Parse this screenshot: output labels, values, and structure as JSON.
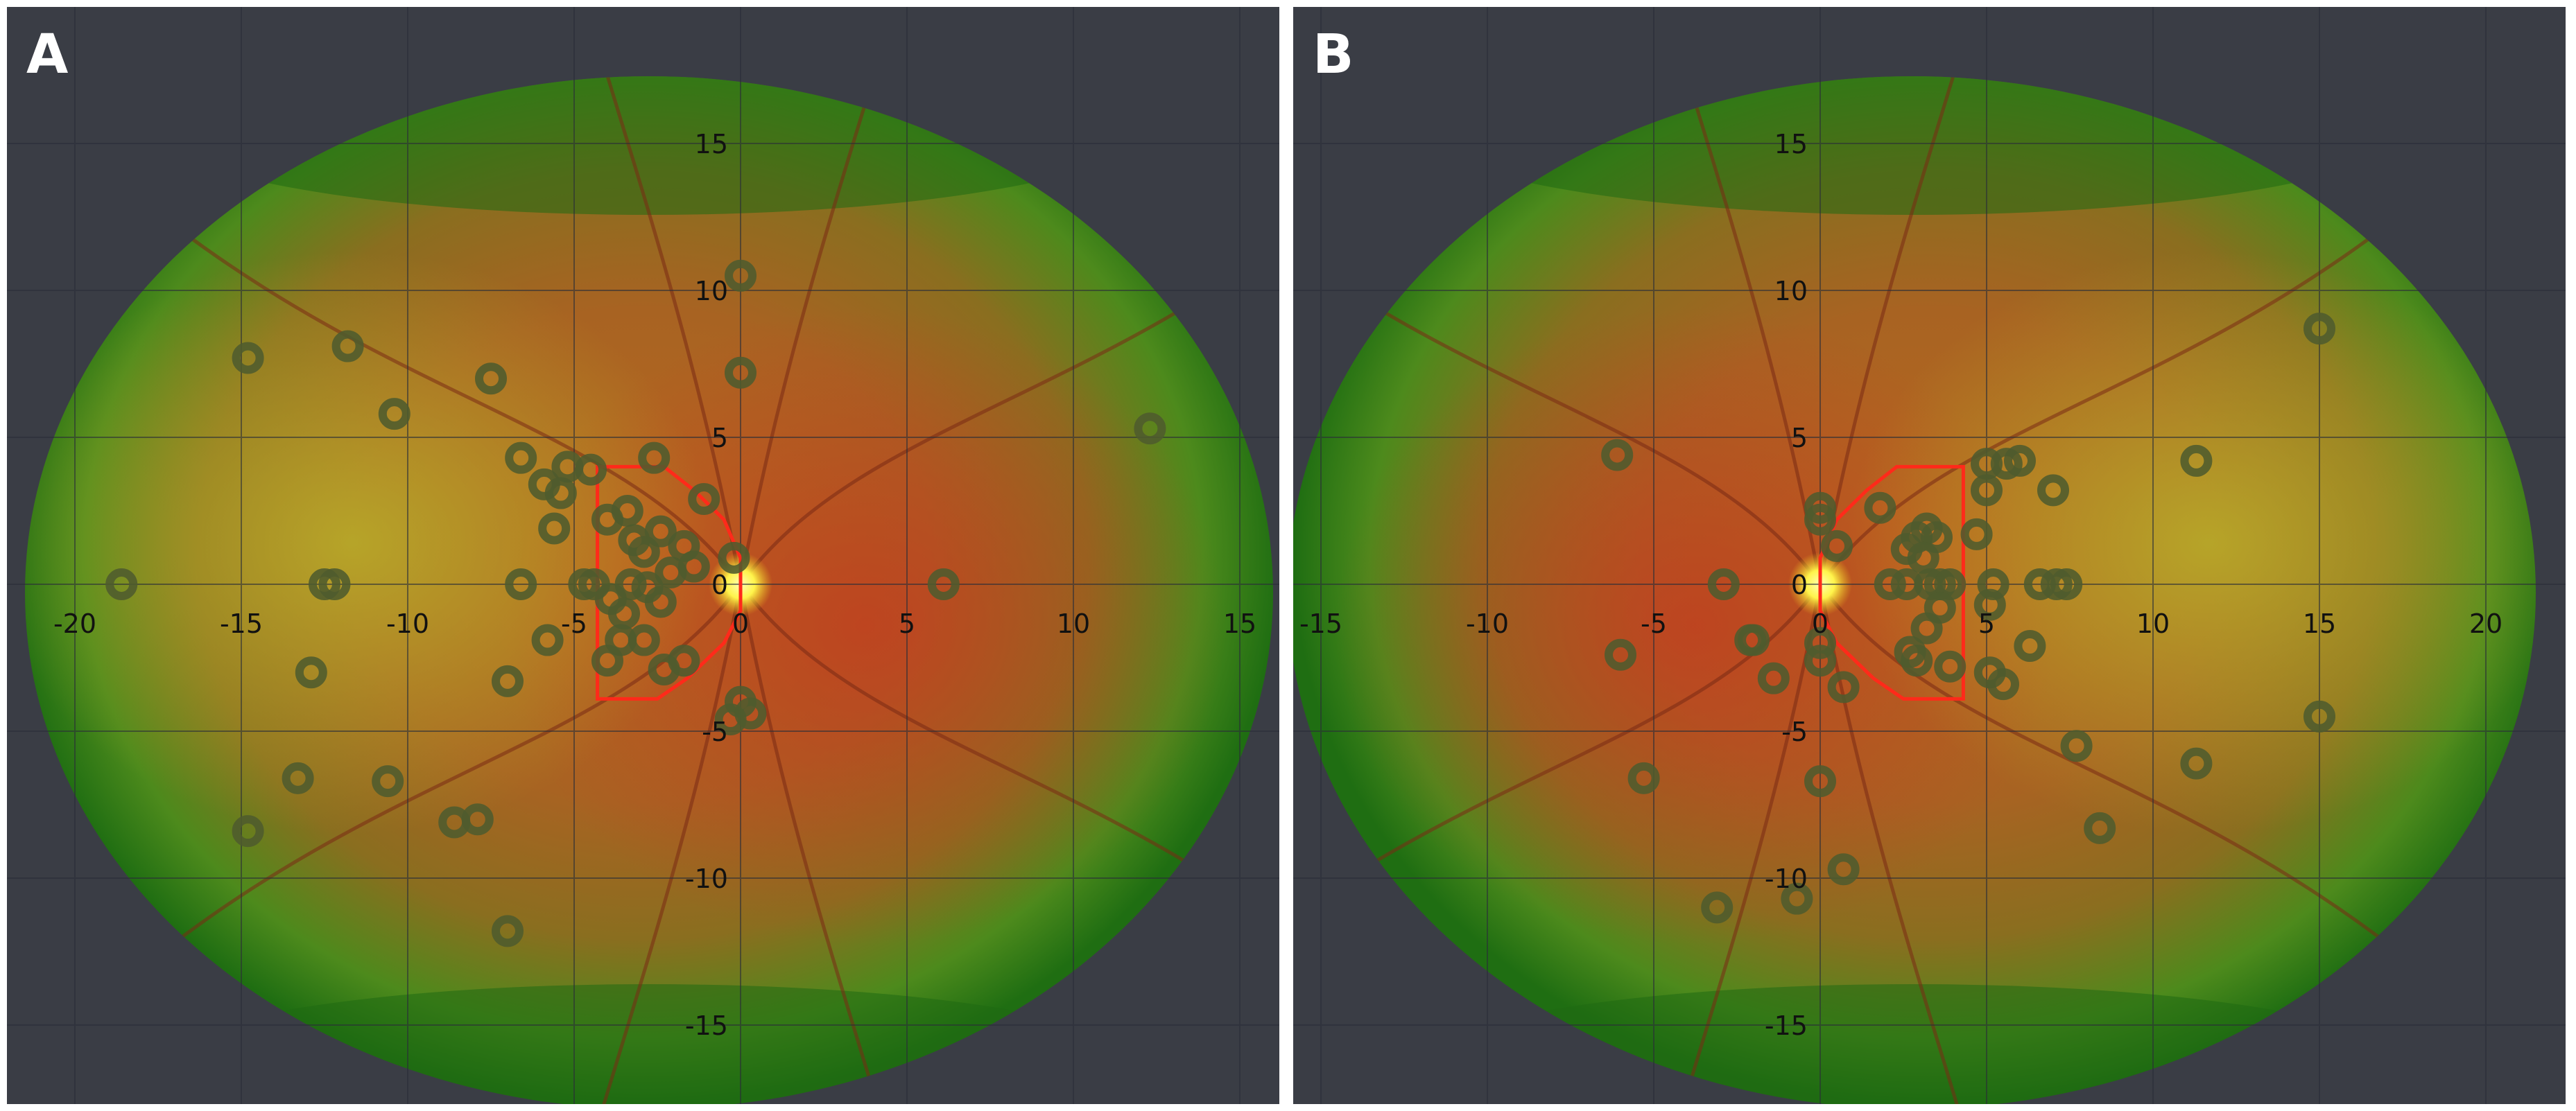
{
  "figure": {
    "panels": [
      {
        "id": "A",
        "label": "A",
        "x_ticks": [
          -20,
          -15,
          -10,
          -5,
          0,
          5,
          10,
          15
        ],
        "y_ticks": [
          15,
          10,
          5,
          0,
          -5,
          -10,
          -15
        ],
        "disc_x": 0,
        "field_x_range": [
          -21.5,
          16
        ],
        "red_outline": [
          [
            -4.3,
            4
          ],
          [
            -2.3,
            4
          ],
          [
            -1.4,
            3.2
          ],
          [
            -0.5,
            2.2
          ],
          [
            0,
            0.9
          ],
          [
            0,
            -0.9
          ],
          [
            -0.5,
            -2
          ],
          [
            -1.6,
            -3.2
          ],
          [
            -2.5,
            -3.9
          ],
          [
            -4.3,
            -3.9
          ]
        ],
        "marks": [
          [
            0,
            10.5
          ],
          [
            0,
            7.2
          ],
          [
            -14.8,
            7.7
          ],
          [
            -11.8,
            8.1
          ],
          [
            -10.4,
            5.8
          ],
          [
            -7.5,
            7
          ],
          [
            12.3,
            5.3
          ],
          [
            -6.6,
            4.3
          ],
          [
            -5.2,
            4
          ],
          [
            -5.9,
            3.4
          ],
          [
            -5.4,
            3.1
          ],
          [
            -4.5,
            3.9
          ],
          [
            -2.6,
            4.3
          ],
          [
            -1.1,
            2.9
          ],
          [
            -5.6,
            1.9
          ],
          [
            -4,
            2.2
          ],
          [
            -3.4,
            2.5
          ],
          [
            -3.2,
            1.5
          ],
          [
            -2.4,
            1.8
          ],
          [
            -1.7,
            1.3
          ],
          [
            -2.9,
            1.1
          ],
          [
            -1.4,
            0.6
          ],
          [
            -0.2,
            0.9
          ],
          [
            -18.6,
            0
          ],
          [
            -12.2,
            0
          ],
          [
            -12.5,
            0
          ],
          [
            -6.6,
            0
          ],
          [
            -4.7,
            0
          ],
          [
            -4.4,
            0
          ],
          [
            -3.3,
            0
          ],
          [
            -2.8,
            -0.1
          ],
          [
            -2.1,
            0.4
          ],
          [
            -3.9,
            -0.5
          ],
          [
            -2.4,
            -0.6
          ],
          [
            -3.5,
            -1
          ],
          [
            6.1,
            0
          ],
          [
            -5.8,
            -1.9
          ],
          [
            -3.6,
            -1.9
          ],
          [
            -2.9,
            -1.9
          ],
          [
            -4,
            -2.6
          ],
          [
            -2.3,
            -2.9
          ],
          [
            -1.7,
            -2.6
          ],
          [
            -12.9,
            -3
          ],
          [
            -7,
            -3.3
          ],
          [
            0,
            -4
          ],
          [
            -0.3,
            -4.6
          ],
          [
            0.3,
            -4.4
          ],
          [
            -13.3,
            -6.6
          ],
          [
            -10.6,
            -6.7
          ],
          [
            -14.8,
            -8.4
          ],
          [
            -8.6,
            -8.1
          ],
          [
            -7.9,
            -8
          ],
          [
            -7,
            -11.8
          ]
        ]
      },
      {
        "id": "B",
        "label": "B",
        "x_ticks": [
          -15,
          -10,
          -5,
          0,
          5,
          10,
          15,
          20
        ],
        "y_ticks": [
          15,
          10,
          5,
          0,
          -5,
          -10,
          -15
        ],
        "disc_x": 0,
        "field_x_range": [
          -16,
          21.5
        ],
        "red_outline": [
          [
            4.3,
            4
          ],
          [
            2.3,
            4
          ],
          [
            1.4,
            3.2
          ],
          [
            0.5,
            2.2
          ],
          [
            0,
            0.9
          ],
          [
            0,
            -0.9
          ],
          [
            0.5,
            -2
          ],
          [
            1.6,
            -3.2
          ],
          [
            2.5,
            -3.9
          ],
          [
            4.3,
            -3.9
          ]
        ],
        "marks": [
          [
            15,
            8.7
          ],
          [
            -6.1,
            4.4
          ],
          [
            5,
            4.1
          ],
          [
            5.6,
            4.1
          ],
          [
            6,
            4.2
          ],
          [
            11.3,
            4.2
          ],
          [
            5,
            3.2
          ],
          [
            7,
            3.2
          ],
          [
            0,
            2.6
          ],
          [
            1.8,
            2.6
          ],
          [
            0,
            2.2
          ],
          [
            2.9,
            1.6
          ],
          [
            3.2,
            1.9
          ],
          [
            3.5,
            1.6
          ],
          [
            4.7,
            1.7
          ],
          [
            0.5,
            1.3
          ],
          [
            2.6,
            1.2
          ],
          [
            3.1,
            0.9
          ],
          [
            -2.9,
            0
          ],
          [
            2.1,
            0
          ],
          [
            2.6,
            0
          ],
          [
            3.3,
            0
          ],
          [
            3.6,
            0
          ],
          [
            3.9,
            0
          ],
          [
            5.2,
            0
          ],
          [
            6.6,
            0
          ],
          [
            7.1,
            0
          ],
          [
            7.4,
            0
          ],
          [
            3.6,
            -0.8
          ],
          [
            5.1,
            -0.7
          ],
          [
            3.2,
            -1.5
          ],
          [
            2.7,
            -2.3
          ],
          [
            2.9,
            -2.6
          ],
          [
            -2,
            -1.9
          ],
          [
            -2.1,
            -1.9
          ],
          [
            0,
            -2
          ],
          [
            6.3,
            -2.1
          ],
          [
            -6,
            -2.4
          ],
          [
            0,
            -2.6
          ],
          [
            3.9,
            -2.8
          ],
          [
            5.1,
            -3
          ],
          [
            5.5,
            -3.4
          ],
          [
            -1.4,
            -3.2
          ],
          [
            0.7,
            -3.5
          ],
          [
            7.7,
            -5.5
          ],
          [
            11.3,
            -6.1
          ],
          [
            15,
            -4.5
          ],
          [
            -5.3,
            -6.6
          ],
          [
            0,
            -6.7
          ],
          [
            8.4,
            -8.3
          ],
          [
            -3.1,
            -11
          ],
          [
            -0.7,
            -10.7
          ],
          [
            0.7,
            -9.7
          ]
        ]
      }
    ]
  }
}
